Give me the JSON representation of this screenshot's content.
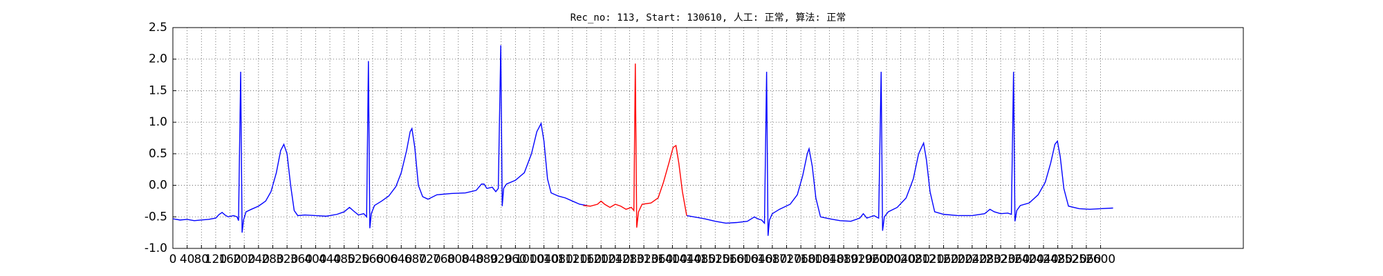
{
  "chart_data": {
    "type": "line",
    "title": "Rec_no: 113, Start: 130610, 人工: 正常, 算法: 正常",
    "xlim": [
      0,
      3000
    ],
    "xticks": [
      0,
      40,
      80,
      120,
      160,
      200,
      240,
      280,
      320,
      360,
      400,
      440,
      480,
      520,
      560,
      600,
      640,
      680,
      720,
      760,
      800,
      840,
      880,
      920,
      960,
      1000,
      1040,
      1080,
      1120,
      1160,
      1200,
      1240,
      1280,
      1320,
      1360,
      1400,
      1440,
      1480,
      1520,
      1560,
      1600,
      1640,
      1680,
      1720,
      1760,
      1800,
      1840,
      1880,
      1920,
      1960,
      2000,
      2040,
      2080,
      2120,
      2160,
      2200,
      2240,
      2280,
      2320,
      2360,
      2400,
      2440,
      2480,
      2520,
      2560,
      2600
    ],
    "ylim": [
      -1.0,
      2.5
    ],
    "yticks": [
      {
        "value": -1.0,
        "label": "-1.0"
      },
      -0.5,
      {
        "value": 0.0,
        "label": "0.0"
      },
      0.5,
      {
        "value": 1.0,
        "label": "1.0"
      },
      1.5,
      {
        "value": 2.0,
        "label": "2.0"
      },
      2.5
    ],
    "grid": true,
    "series": [
      {
        "color": "#0000ff",
        "x": [
          0,
          20,
          40,
          60,
          80,
          100,
          120,
          130,
          138,
          146,
          155,
          170,
          180,
          184,
          190,
          194,
          198,
          205,
          220,
          240,
          260,
          275,
          290,
          302,
          311,
          320,
          330,
          340,
          350,
          370,
          400,
          430,
          460,
          480,
          495,
          505,
          520,
          535,
          543,
          548,
          552,
          556,
          565,
          585,
          605,
          625,
          640,
          655,
          665,
          670,
          678,
          688,
          700,
          715,
          740,
          780,
          820,
          850,
          865,
          872,
          880,
          895,
          905,
          912,
          919,
          923,
          927,
          935,
          960,
          985,
          1005,
          1020,
          1032,
          1040,
          1050,
          1060,
          1080,
          1100,
          1120,
          1140,
          1160,
          1300,
          1440,
          1460,
          1490,
          1520,
          1550,
          1580,
          1610,
          1630,
          1638,
          1650,
          1658,
          1664,
          1668,
          1672,
          1680,
          1700,
          1730,
          1750,
          1765,
          1778,
          1783,
          1792,
          1802,
          1815,
          1840,
          1870,
          1900,
          1925,
          1935,
          1945,
          1965,
          1978,
          1985,
          1989,
          1994,
          2005,
          2030,
          2055,
          2075,
          2090,
          2104,
          2112,
          2122,
          2135,
          2160,
          2200,
          2240,
          2275,
          2290,
          2302,
          2320,
          2340,
          2350,
          2356,
          2360,
          2365,
          2375,
          2400,
          2425,
          2445,
          2460,
          2472,
          2479,
          2487,
          2497,
          2510,
          2540,
          2570,
          2600,
          2635
        ],
        "values": [
          -0.53,
          -0.55,
          -0.54,
          -0.56,
          -0.55,
          -0.54,
          -0.52,
          -0.46,
          -0.43,
          -0.47,
          -0.5,
          -0.48,
          -0.5,
          -0.56,
          1.8,
          -0.75,
          -0.55,
          -0.42,
          -0.38,
          -0.33,
          -0.25,
          -0.1,
          0.2,
          0.55,
          0.65,
          0.5,
          0.0,
          -0.4,
          -0.48,
          -0.47,
          -0.48,
          -0.49,
          -0.46,
          -0.42,
          -0.35,
          -0.4,
          -0.47,
          -0.45,
          -0.5,
          1.97,
          -0.68,
          -0.45,
          -0.32,
          -0.25,
          -0.17,
          -0.02,
          0.2,
          0.55,
          0.85,
          0.9,
          0.6,
          0.0,
          -0.18,
          -0.22,
          -0.15,
          -0.13,
          -0.12,
          -0.08,
          0.02,
          0.02,
          -0.05,
          -0.03,
          -0.1,
          -0.05,
          2.22,
          -0.33,
          -0.05,
          0.02,
          0.08,
          0.2,
          0.5,
          0.85,
          0.98,
          0.7,
          0.1,
          -0.12,
          -0.17,
          -0.2,
          -0.25,
          -0.3,
          -0.32,
          null,
          -0.48,
          -0.5,
          -0.53,
          -0.57,
          -0.6,
          -0.59,
          -0.57,
          -0.5,
          -0.53,
          -0.55,
          -0.6,
          1.8,
          -0.8,
          -0.55,
          -0.45,
          -0.38,
          -0.3,
          -0.15,
          0.15,
          0.5,
          0.58,
          0.3,
          -0.2,
          -0.5,
          -0.53,
          -0.56,
          -0.57,
          -0.52,
          -0.45,
          -0.52,
          -0.48,
          -0.52,
          1.8,
          -0.72,
          -0.5,
          -0.42,
          -0.35,
          -0.2,
          0.1,
          0.5,
          0.67,
          0.4,
          -0.1,
          -0.42,
          -0.46,
          -0.48,
          -0.48,
          -0.45,
          -0.38,
          -0.42,
          -0.45,
          -0.44,
          -0.46,
          1.8,
          -0.57,
          -0.4,
          -0.32,
          -0.28,
          -0.15,
          0.05,
          0.35,
          0.65,
          0.7,
          0.45,
          -0.05,
          -0.33,
          -0.37,
          -0.38,
          -0.37,
          -0.36
        ]
      },
      {
        "color": "#ff0000",
        "x": [
          1150,
          1170,
          1190,
          1200,
          1210,
          1225,
          1240,
          1255,
          1270,
          1285,
          1292,
          1296,
          1300,
          1305,
          1315,
          1340,
          1360,
          1375,
          1390,
          1402,
          1410,
          1418,
          1428,
          1440
        ],
        "values": [
          -0.32,
          -0.33,
          -0.3,
          -0.25,
          -0.3,
          -0.35,
          -0.3,
          -0.33,
          -0.38,
          -0.35,
          -0.4,
          1.93,
          -0.67,
          -0.42,
          -0.3,
          -0.28,
          -0.2,
          0.05,
          0.35,
          0.6,
          0.63,
          0.35,
          -0.1,
          -0.48
        ]
      }
    ]
  }
}
